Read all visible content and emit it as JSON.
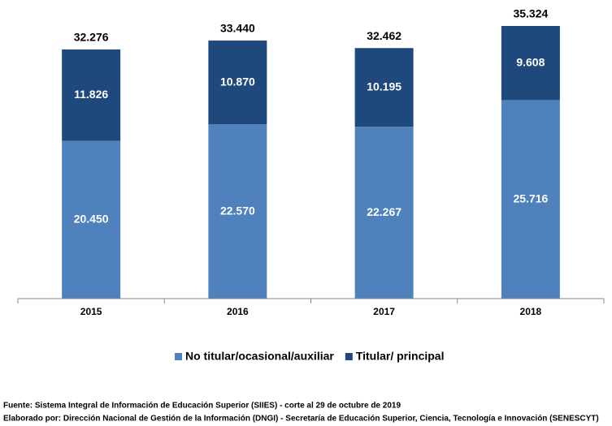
{
  "chart_data": {
    "type": "stacked_bar",
    "categories": [
      "2015",
      "2016",
      "2017",
      "2018"
    ],
    "series": [
      {
        "name": "No titular/ocasional/auxiliar",
        "color": "#4f81bd",
        "values": [
          20450,
          22570,
          22267,
          25716
        ],
        "value_labels": [
          "20.450",
          "22.570",
          "22.267",
          "25.716"
        ]
      },
      {
        "name": "Titular/ principal",
        "color": "#1f497d",
        "values": [
          11826,
          10870,
          10195,
          9608
        ],
        "value_labels": [
          "11.826",
          "10.870",
          "10.195",
          "9.608"
        ]
      }
    ],
    "totals": {
      "values": [
        32276,
        33440,
        32462,
        35324
      ],
      "value_labels": [
        "32.276",
        "33.440",
        "32.462",
        "35.324"
      ]
    },
    "legend": "bottom",
    "source": "Fuente: Sistema Integral de Información de Educación Superior (SIIES) - corte al 29 de octubre de 2019",
    "credit": "Elaborado por: Dirección Nacional de Gestión de la Información (DNGI) - Secretaría de Educación Superior, Ciencia, Tecnología e Innovación (SENESCYT)"
  }
}
